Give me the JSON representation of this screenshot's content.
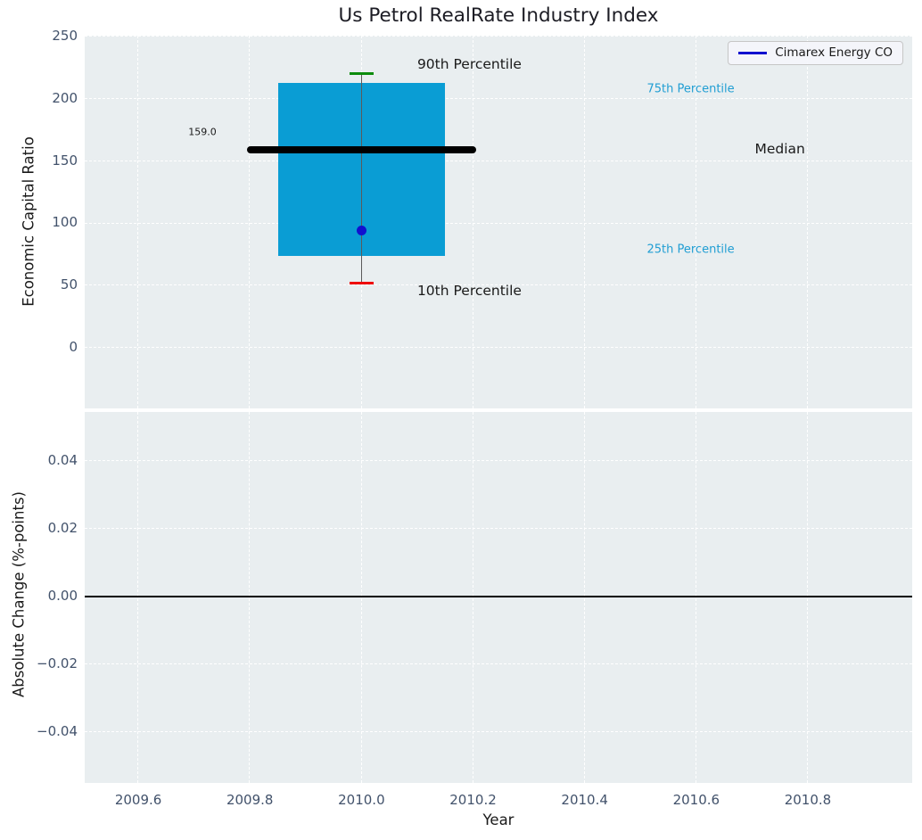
{
  "title": "Us Petrol RealRate Industry Index",
  "legend": {
    "label": "Cimarex Energy CO",
    "line_color": "#1111cf"
  },
  "colors": {
    "plot_bg": "#e9eef0",
    "grid": "#ffffff",
    "box_fill": "#0a9dd4",
    "whisker": "#5a5a5a",
    "cap_90th": "#0c8c0c",
    "cap_10th": "#ee0a0a",
    "median_line": "#000000",
    "company_point": "#1111cf",
    "percentile_label": "#219ed3",
    "tick_text": "#42526b",
    "zero_line": "#000000"
  },
  "chart_data": [
    {
      "type": "box",
      "title": "Us Petrol RealRate Industry Index",
      "ylabel": "Economic Capital Ratio",
      "xlim": [
        2009.504,
        2010.987
      ],
      "ylim": [
        -48.7,
        250.7
      ],
      "grid": true,
      "yticks": {
        "values": [
          0,
          50,
          100,
          150,
          200,
          250
        ],
        "labels": [
          "0",
          "50",
          "100",
          "150",
          "200",
          "250"
        ]
      },
      "box": {
        "x": 2010.0,
        "p10": 52,
        "p25": 73.5,
        "median": 159,
        "p75": 213,
        "p90": 220,
        "box_halfwidth": 0.15,
        "median_halfwidth": 0.205,
        "cap_halfwidth": 0.021
      },
      "company_point": {
        "name": "Cimarex Energy CO",
        "x": 2010.0,
        "y": 94
      },
      "annotations": [
        {
          "text": "90th Percentile",
          "x": 2010.1,
          "y": 228,
          "size": 15.5,
          "color": "#1a1a1a",
          "align": "left"
        },
        {
          "text": "75th Percentile",
          "x": 2010.59,
          "y": 208,
          "size": 13,
          "color": "#219ed3",
          "align": "center"
        },
        {
          "text": "Median",
          "x": 2010.75,
          "y": 160,
          "size": 15.5,
          "color": "#1a1a1a",
          "align": "center"
        },
        {
          "text": "25th Percentile",
          "x": 2010.59,
          "y": 79,
          "size": 13,
          "color": "#219ed3",
          "align": "center"
        },
        {
          "text": "10th Percentile",
          "x": 2010.1,
          "y": 46,
          "size": 15.5,
          "color": "#1a1a1a",
          "align": "left"
        },
        {
          "text": "159.0",
          "x": 2009.715,
          "y": 173,
          "size": 11,
          "color": "#1a1a1a",
          "align": "center"
        }
      ]
    },
    {
      "type": "line",
      "ylabel": "Absolute Change (%-points)",
      "xlabel": "Year",
      "xlim": [
        2009.504,
        2010.987
      ],
      "ylim": [
        -0.055,
        0.0545
      ],
      "grid": true,
      "yticks": {
        "values": [
          -0.04,
          -0.02,
          0,
          0.02,
          0.04
        ],
        "labels": [
          "−0.04",
          "−0.02",
          "0.00",
          "0.02",
          "0.04"
        ]
      },
      "xticks": {
        "values": [
          2009.6,
          2009.8,
          2010.0,
          2010.2,
          2010.4,
          2010.6,
          2010.8
        ],
        "labels": [
          "2009.6",
          "2009.8",
          "2010.0",
          "2010.2",
          "2010.4",
          "2010.6",
          "2010.8"
        ]
      },
      "zero_line": 0,
      "series": []
    }
  ]
}
